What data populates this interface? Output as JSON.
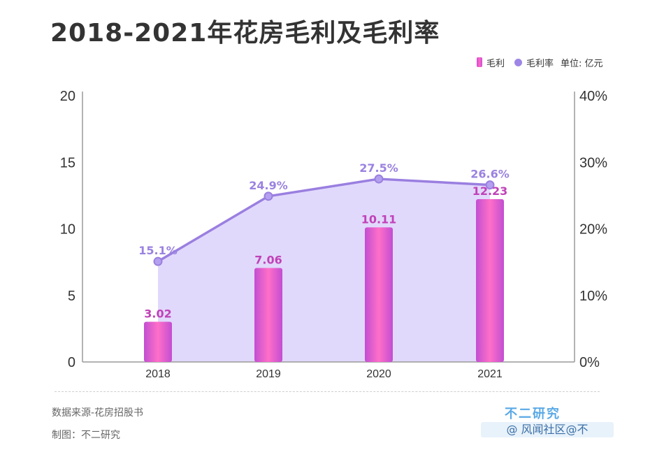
{
  "header": {
    "title": "2018-2021年花房毛利及毛利率"
  },
  "legend": {
    "bar_label": "毛利",
    "line_label": "毛利率",
    "unit": "单位: 亿元"
  },
  "footer": {
    "source": "数据来源-花房招股书",
    "maker": "制图：不二研究"
  },
  "brand": {
    "name": "不二研究",
    "sub": "@ 风闻社区@不"
  },
  "colors": {
    "bar": "#d65ad6",
    "bar_label": "#c042b8",
    "line": "#9a7fe0",
    "area": "#d9d0fb",
    "line_label": "#9a82e0"
  },
  "chart_data": {
    "type": "bar",
    "categories": [
      "2018",
      "2019",
      "2020",
      "2021"
    ],
    "series": [
      {
        "name": "毛利",
        "type": "bar",
        "axis": "left",
        "values": [
          3.02,
          7.06,
          10.11,
          12.23
        ],
        "labels": [
          "3.02",
          "7.06",
          "10.11",
          "12.23"
        ]
      },
      {
        "name": "毛利率",
        "type": "line",
        "axis": "right",
        "values": [
          15.1,
          24.9,
          27.5,
          26.6
        ],
        "labels": [
          "15.1%",
          "24.9%",
          "27.5%",
          "26.6%"
        ]
      }
    ],
    "y_left": {
      "min": 0,
      "max": 20,
      "ticks": [
        "0",
        "5",
        "10",
        "15",
        "20"
      ]
    },
    "y_right": {
      "min": 0,
      "max": 40,
      "ticks": [
        "0%",
        "10%",
        "20%",
        "30%",
        "40%"
      ]
    },
    "grid": false,
    "legend_position": "top-right"
  }
}
